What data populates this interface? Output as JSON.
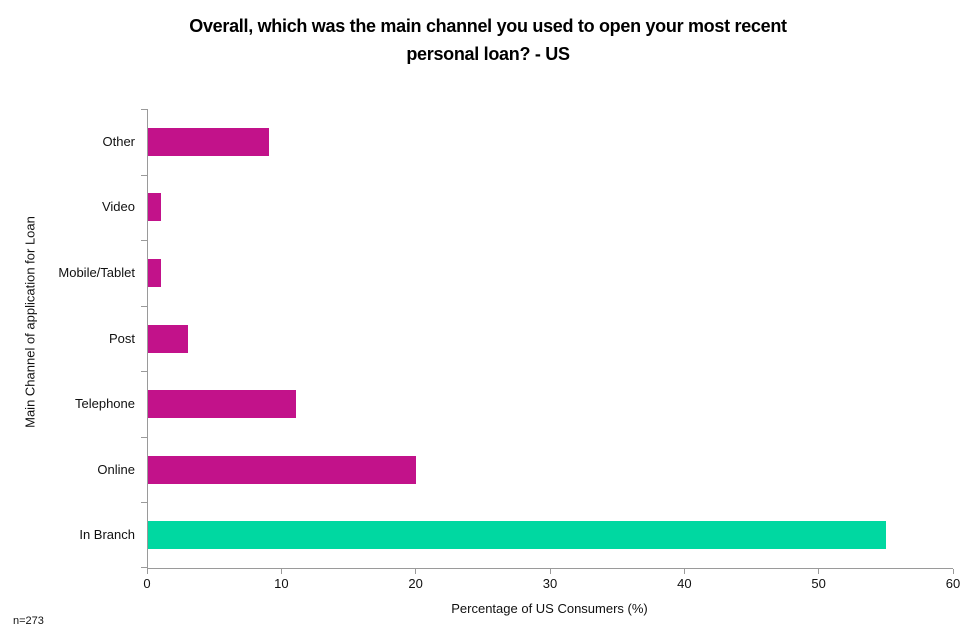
{
  "chart_data": {
    "type": "bar",
    "orientation": "horizontal",
    "title": "Overall, which was the main channel you used to open your most recent personal loan? - US",
    "title_lines": [
      "Overall, which was the main channel you used to open your most recent",
      "personal loan? - US"
    ],
    "categories": [
      "Other",
      "Video",
      "Mobile/Tablet",
      "Post",
      "Telephone",
      "Online",
      "In Branch"
    ],
    "values": [
      9,
      1,
      1,
      3,
      11,
      20,
      55
    ],
    "colors": [
      "#C2128A",
      "#C2128A",
      "#C2128A",
      "#C2128A",
      "#C2128A",
      "#C2128A",
      "#00D8A1"
    ],
    "bar_color_default": "#C2128A",
    "bar_color_highlight": "#00D8A1",
    "xlabel": "Percentage of US Consumers (%)",
    "ylabel": "Main Channel of application for Loan",
    "xlim": [
      0,
      60
    ],
    "xticks": [
      0,
      10,
      20,
      30,
      40,
      50,
      60
    ],
    "grid": false,
    "legend": false
  },
  "note": "n=273"
}
